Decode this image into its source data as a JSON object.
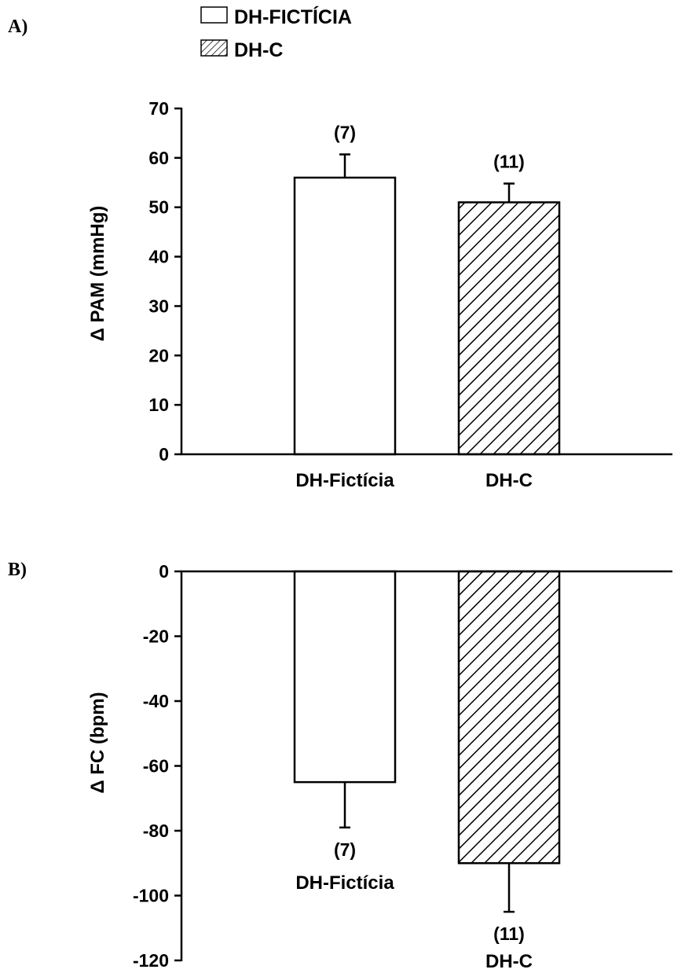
{
  "legend": [
    {
      "label": "DH-FICTÍCIA",
      "fill": "white"
    },
    {
      "label": "DH-C",
      "fill": "hatch"
    }
  ],
  "chart_data": [
    {
      "type": "bar",
      "panel_label": "A)",
      "ylabel": "Δ PAM (mmHg)",
      "ylim": [
        0,
        70
      ],
      "yticks": [
        0,
        10,
        20,
        30,
        40,
        50,
        60,
        70
      ],
      "categories": [
        "DH-Fictícia",
        "DH-C"
      ],
      "values": [
        56,
        51
      ],
      "errors": [
        4.7,
        3.8
      ],
      "n_labels": [
        "(7)",
        "(11)"
      ],
      "fills": [
        "white",
        "hatch"
      ]
    },
    {
      "type": "bar",
      "panel_label": "B)",
      "ylabel": "Δ FC (bpm)",
      "ylim": [
        -120,
        0
      ],
      "yticks": [
        0,
        -20,
        -40,
        -60,
        -80,
        -100,
        -120
      ],
      "categories": [
        "DH-Fictícia",
        "DH-C"
      ],
      "values": [
        -65,
        -90
      ],
      "errors": [
        14,
        15
      ],
      "n_labels": [
        "(7)",
        "(11)"
      ],
      "fills": [
        "white",
        "hatch"
      ]
    }
  ]
}
